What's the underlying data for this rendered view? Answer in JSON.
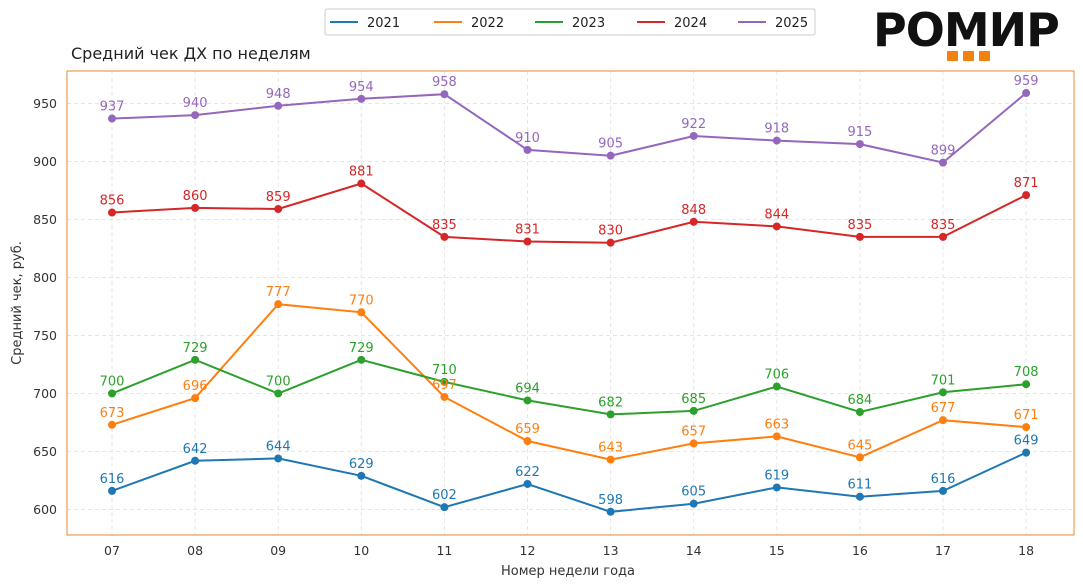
{
  "chart_data": {
    "type": "line",
    "title": "Средний чек ДХ по неделям",
    "xlabel": "Номер недели года",
    "ylabel": "Средний чек, руб.",
    "categories": [
      "07",
      "08",
      "09",
      "10",
      "11",
      "12",
      "13",
      "14",
      "15",
      "16",
      "17",
      "18"
    ],
    "ylim": [
      578,
      978
    ],
    "yticks": [
      600,
      650,
      700,
      750,
      800,
      850,
      900,
      950
    ],
    "grid": true,
    "legend_position": "top-center",
    "series": [
      {
        "name": "2021",
        "color": "#1f77b4",
        "values": [
          616,
          642,
          644,
          629,
          602,
          622,
          598,
          605,
          619,
          611,
          616,
          649
        ]
      },
      {
        "name": "2022",
        "color": "#ff7f0e",
        "values": [
          673,
          696,
          777,
          770,
          697,
          659,
          643,
          657,
          663,
          645,
          677,
          671
        ]
      },
      {
        "name": "2023",
        "color": "#2ca02c",
        "values": [
          700,
          729,
          700,
          729,
          710,
          694,
          682,
          685,
          706,
          684,
          701,
          708
        ]
      },
      {
        "name": "2024",
        "color": "#d62728",
        "values": [
          856,
          860,
          859,
          881,
          835,
          831,
          830,
          848,
          844,
          835,
          835,
          871
        ]
      },
      {
        "name": "2025",
        "color": "#9467bd",
        "values": [
          937,
          940,
          948,
          954,
          958,
          910,
          905,
          922,
          918,
          915,
          899,
          959
        ]
      }
    ]
  },
  "logo": {
    "text": "РОМИР",
    "accent_color": "#f0820f"
  },
  "frame_color": "#e8892a"
}
